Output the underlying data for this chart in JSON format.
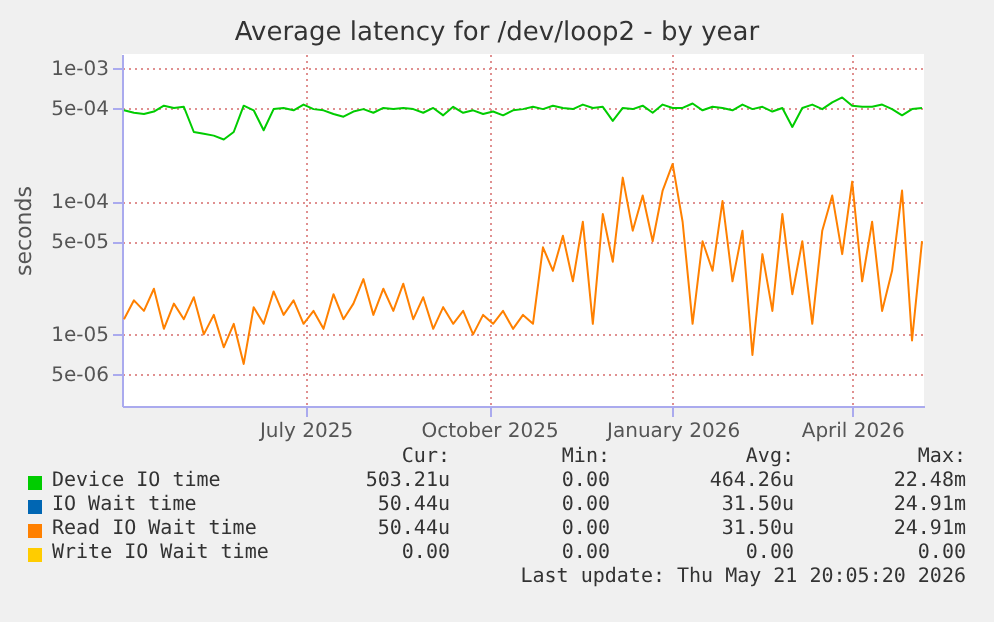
{
  "chart_data": {
    "type": "line",
    "title": "Average latency for /dev/loop2 - by year",
    "ylabel": "seconds",
    "log": "y",
    "grid": true,
    "legend": "bottom",
    "x": [
      "2025-04-01",
      "2025-04-06",
      "2025-04-11",
      "2025-04-16",
      "2025-04-21",
      "2025-04-26",
      "2025-05-01",
      "2025-05-06",
      "2025-05-11",
      "2025-05-16",
      "2025-05-21",
      "2025-05-26",
      "2025-05-31",
      "2025-06-05",
      "2025-06-10",
      "2025-06-15",
      "2025-06-20",
      "2025-06-25",
      "2025-06-30",
      "2025-07-05",
      "2025-07-10",
      "2025-07-15",
      "2025-07-20",
      "2025-07-25",
      "2025-07-30",
      "2025-08-04",
      "2025-08-09",
      "2025-08-14",
      "2025-08-19",
      "2025-08-24",
      "2025-08-29",
      "2025-09-03",
      "2025-09-08",
      "2025-09-13",
      "2025-09-18",
      "2025-09-23",
      "2025-09-28",
      "2025-10-03",
      "2025-10-08",
      "2025-10-13",
      "2025-10-18",
      "2025-10-23",
      "2025-10-28",
      "2025-11-02",
      "2025-11-07",
      "2025-11-12",
      "2025-11-17",
      "2025-11-22",
      "2025-11-27",
      "2025-12-02",
      "2025-12-07",
      "2025-12-12",
      "2025-12-17",
      "2025-12-22",
      "2025-12-27",
      "2026-01-01",
      "2026-01-06",
      "2026-01-11",
      "2026-01-16",
      "2026-01-21",
      "2026-01-26",
      "2026-01-31",
      "2026-02-05",
      "2026-02-10",
      "2026-02-15",
      "2026-02-20",
      "2026-02-25",
      "2026-03-02",
      "2026-03-07",
      "2026-03-12",
      "2026-03-17",
      "2026-03-22",
      "2026-03-27",
      "2026-04-01",
      "2026-04-06",
      "2026-04-11",
      "2026-04-16",
      "2026-04-21",
      "2026-04-26",
      "2026-05-01",
      "2026-05-06"
    ],
    "xlim": [
      "2025-03-31",
      "2026-05-07"
    ],
    "xticks": [
      {
        "value": "2025-07-01",
        "label": "July 2025"
      },
      {
        "value": "2025-10-01",
        "label": "October 2025"
      },
      {
        "value": "2026-01-01",
        "label": "January 2026"
      },
      {
        "value": "2026-04-01",
        "label": "April 2026"
      }
    ],
    "ylim": [
      2.9e-06,
      0.00127
    ],
    "yticks": [
      {
        "value": 0.001,
        "label": "1e-03"
      },
      {
        "value": 0.0005,
        "label": "5e-04"
      },
      {
        "value": 0.0001,
        "label": "1e-04"
      },
      {
        "value": 5e-05,
        "label": "5e-05"
      },
      {
        "value": 1e-05,
        "label": "1e-05"
      },
      {
        "value": 5e-06,
        "label": "5e-06"
      }
    ],
    "series": [
      {
        "name": "Device IO time",
        "color": "#00cc00",
        "values": [
          0.00048,
          0.00046,
          0.00045,
          0.00047,
          0.00052,
          0.0005,
          0.00051,
          0.00033,
          0.00032,
          0.00031,
          0.00029,
          0.00033,
          0.00052,
          0.00048,
          0.00034,
          0.00049,
          0.0005,
          0.00048,
          0.00053,
          0.00049,
          0.00048,
          0.00045,
          0.00043,
          0.00047,
          0.00049,
          0.00046,
          0.0005,
          0.00049,
          0.0005,
          0.00049,
          0.00046,
          0.0005,
          0.00044,
          0.00051,
          0.00046,
          0.00048,
          0.00045,
          0.00047,
          0.00044,
          0.00048,
          0.00049,
          0.00051,
          0.00049,
          0.00052,
          0.0005,
          0.00049,
          0.00053,
          0.0005,
          0.00051,
          0.0004,
          0.0005,
          0.00049,
          0.00052,
          0.00046,
          0.00053,
          0.0005,
          0.0005,
          0.00054,
          0.00048,
          0.00051,
          0.0005,
          0.00048,
          0.00053,
          0.00049,
          0.00051,
          0.00047,
          0.0005,
          0.00036,
          0.0005,
          0.00053,
          0.00049,
          0.00055,
          0.0006,
          0.00052,
          0.00051,
          0.00051,
          0.00053,
          0.00049,
          0.00044,
          0.00049,
          0.0005
        ]
      },
      {
        "name": "IO Wait time",
        "color": "#0066b3",
        "values": [
          null,
          null,
          null,
          null,
          null,
          null,
          null,
          null,
          null,
          null,
          null,
          null,
          null,
          null,
          null,
          null,
          null,
          null,
          null,
          null,
          null,
          null,
          null,
          null,
          null,
          null,
          null,
          null,
          null,
          null,
          null,
          null,
          null,
          null,
          null,
          null,
          null,
          null,
          null,
          null,
          null,
          null,
          null,
          null,
          null,
          null,
          null,
          null,
          null,
          null,
          null,
          null,
          null,
          null,
          null,
          null,
          null,
          null,
          null,
          null,
          null,
          null,
          null,
          null,
          null,
          null,
          null,
          null,
          null,
          null,
          null,
          null,
          null,
          null,
          null,
          null,
          null,
          null,
          null,
          null,
          null
        ]
      },
      {
        "name": "Read IO Wait time",
        "color": "#ff8000",
        "values": [
          1.3e-05,
          1.8e-05,
          1.5e-05,
          2.2e-05,
          1.1e-05,
          1.7e-05,
          1.3e-05,
          1.9e-05,
          1e-05,
          1.4e-05,
          8e-06,
          1.2e-05,
          6e-06,
          1.6e-05,
          1.2e-05,
          2.1e-05,
          1.4e-05,
          1.8e-05,
          1.2e-05,
          1.5e-05,
          1.1e-05,
          2e-05,
          1.3e-05,
          1.7e-05,
          2.6e-05,
          1.4e-05,
          2.2e-05,
          1.5e-05,
          2.4e-05,
          1.3e-05,
          1.9e-05,
          1.1e-05,
          1.6e-05,
          1.2e-05,
          1.5e-05,
          1e-05,
          1.4e-05,
          1.2e-05,
          1.5e-05,
          1.1e-05,
          1.4e-05,
          1.2e-05,
          4.5e-05,
          3e-05,
          5.5e-05,
          2.5e-05,
          7e-05,
          1.2e-05,
          8e-05,
          3.5e-05,
          0.00015,
          6e-05,
          0.00011,
          5e-05,
          0.00012,
          0.00019,
          7e-05,
          1.2e-05,
          5e-05,
          3e-05,
          0.0001,
          2.5e-05,
          6e-05,
          7e-06,
          4e-05,
          1.5e-05,
          8e-05,
          2e-05,
          5e-05,
          1.2e-05,
          6e-05,
          0.00011,
          4e-05,
          0.00014,
          2.5e-05,
          7e-05,
          1.5e-05,
          3e-05,
          0.00012,
          9e-06,
          5e-05
        ]
      },
      {
        "name": "Write IO Wait time",
        "color": "#ffcc00",
        "values": [
          null,
          null,
          null,
          null,
          null,
          null,
          null,
          null,
          null,
          null,
          null,
          null,
          null,
          null,
          null,
          null,
          null,
          null,
          null,
          null,
          null,
          null,
          null,
          null,
          null,
          null,
          null,
          null,
          null,
          null,
          null,
          null,
          null,
          null,
          null,
          null,
          null,
          null,
          null,
          null,
          null,
          null,
          null,
          null,
          null,
          null,
          null,
          null,
          null,
          null,
          null,
          null,
          null,
          null,
          null,
          null,
          null,
          null,
          null,
          null,
          null,
          null,
          null,
          null,
          null,
          null,
          null,
          null,
          null,
          null,
          null,
          null,
          null,
          null,
          null,
          null,
          null,
          null,
          null,
          null,
          null
        ]
      }
    ],
    "annotations": [
      "Cur:",
      "Min:",
      "Avg:",
      "Max:",
      "503.21u",
      "0.00",
      "464.26u",
      "22.48m",
      "50.44u",
      "0.00",
      "31.50u",
      "24.91m",
      "50.44u",
      "0.00",
      "31.50u",
      "24.91m",
      "0.00",
      "0.00",
      "0.00",
      "0.00",
      "Last update: Thu May 21 20:05:20 2026"
    ]
  }
}
